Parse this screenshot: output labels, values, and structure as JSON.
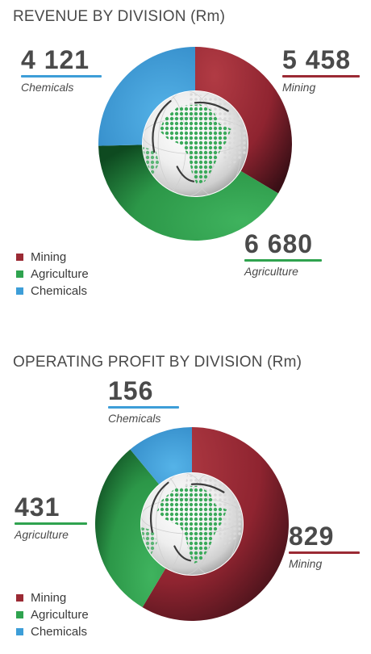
{
  "chart_data": [
    {
      "type": "donut",
      "title": "REVENUE BY DIVISION (Rm)",
      "categories": [
        "Mining",
        "Agriculture",
        "Chemicals"
      ],
      "values": [
        5458,
        6680,
        4121
      ],
      "value_labels": [
        "5 458",
        "6 680",
        "4 121"
      ],
      "colors": [
        "#9b2a34",
        "#2fa34f",
        "#3d9ed8"
      ],
      "legend_position": "bottom-left",
      "center_graphic": "africa-globe"
    },
    {
      "type": "donut",
      "title": "OPERATING PROFIT BY DIVISION (Rm)",
      "categories": [
        "Mining",
        "Agriculture",
        "Chemicals"
      ],
      "values": [
        829,
        431,
        156
      ],
      "value_labels": [
        "829",
        "431",
        "156"
      ],
      "colors": [
        "#9b2a34",
        "#2fa34f",
        "#3d9ed8"
      ],
      "legend_position": "bottom-left",
      "center_graphic": "africa-globe"
    }
  ]
}
